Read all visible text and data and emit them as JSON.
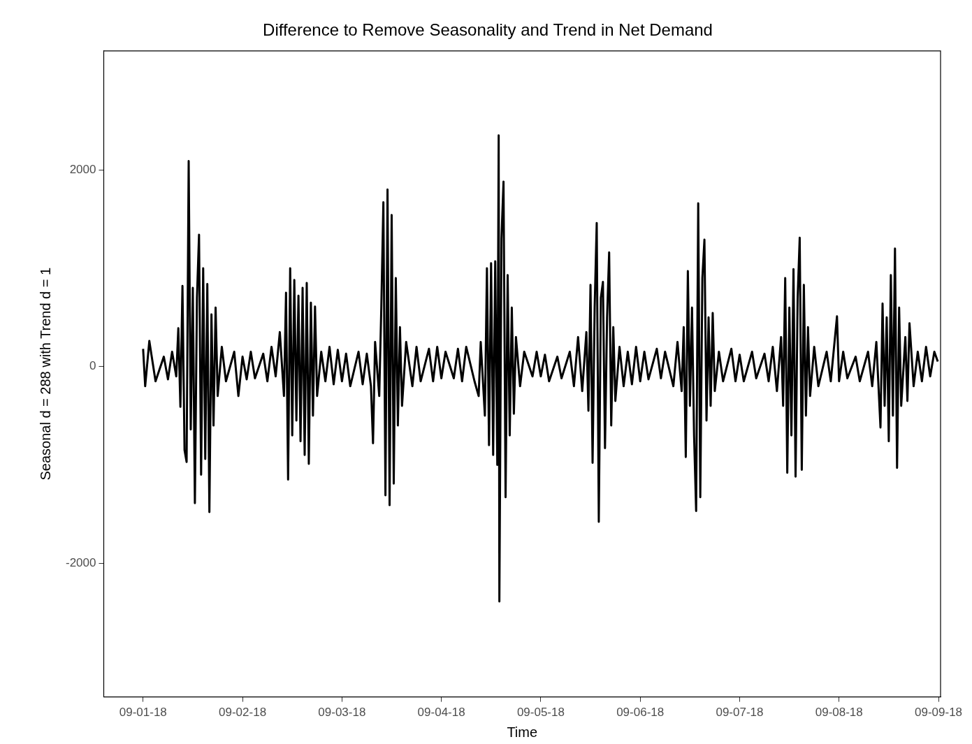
{
  "chart_data": {
    "type": "line",
    "title": "Difference to Remove Seasonality and Trend in Net Demand",
    "xlabel": "Time",
    "ylabel": "Seasonal d = 288 with Trend d = 1",
    "xlim": [
      "--08-31T14:30",
      "--09-09T00:30"
    ],
    "xticks": [
      {
        "value": "--09-01",
        "label": "09-01-18"
      },
      {
        "value": "--09-02",
        "label": "09-02-18"
      },
      {
        "value": "--09-03",
        "label": "09-03-18"
      },
      {
        "value": "--09-04",
        "label": "09-04-18"
      },
      {
        "value": "--09-05",
        "label": "09-05-18"
      },
      {
        "value": "--09-06",
        "label": "09-06-18"
      },
      {
        "value": "--09-07",
        "label": "09-07-18"
      },
      {
        "value": "--09-08",
        "label": "09-08-18"
      },
      {
        "value": "--09-09",
        "label": "09-09-18"
      }
    ],
    "ylim": [
      -3360,
      3210
    ],
    "yticks": [
      -2000,
      0,
      2000
    ],
    "grid": false,
    "legend": false,
    "line_style": "solid",
    "x": [
      "--09-01T00:00",
      "--09-01T00:30",
      "--09-01T01:30",
      "--09-01T03:00",
      "--09-01T05:00",
      "--09-01T06:00",
      "--09-01T07:00",
      "--09-01T08:00",
      "--09-01T08:30",
      "--09-01T09:00",
      "--09-01T09:30",
      "--09-01T10:00",
      "--09-01T10:30",
      "--09-01T11:00",
      "--09-01T11:30",
      "--09-01T12:00",
      "--09-01T12:30",
      "--09-01T13:00",
      "--09-01T13:30",
      "--09-01T14:00",
      "--09-01T14:30",
      "--09-01T15:00",
      "--09-01T15:30",
      "--09-01T16:00",
      "--09-01T16:30",
      "--09-01T17:00",
      "--09-01T17:30",
      "--09-01T18:00",
      "--09-01T19:00",
      "--09-01T20:00",
      "--09-01T22:00",
      "--09-01T23:00",
      "--09-02T00:00",
      "--09-02T01:00",
      "--09-02T02:00",
      "--09-02T03:00",
      "--09-02T05:00",
      "--09-02T06:00",
      "--09-02T07:00",
      "--09-02T08:00",
      "--09-02T09:00",
      "--09-02T10:00",
      "--09-02T10:30",
      "--09-02T11:00",
      "--09-02T11:30",
      "--09-02T12:00",
      "--09-02T12:30",
      "--09-02T13:00",
      "--09-02T13:30",
      "--09-02T14:00",
      "--09-02T14:30",
      "--09-02T15:00",
      "--09-02T15:30",
      "--09-02T16:00",
      "--09-02T16:30",
      "--09-02T17:00",
      "--09-02T17:30",
      "--09-02T18:00",
      "--09-02T19:00",
      "--09-02T20:00",
      "--09-02T21:00",
      "--09-02T22:00",
      "--09-02T23:00",
      "--09-03T00:00",
      "--09-03T01:00",
      "--09-03T02:00",
      "--09-03T04:00",
      "--09-03T05:00",
      "--09-03T06:00",
      "--09-03T07:00",
      "--09-03T07:30",
      "--09-03T08:00",
      "--09-03T09:00",
      "--09-03T09:30",
      "--09-03T10:00",
      "--09-03T10:30",
      "--09-03T11:00",
      "--09-03T11:30",
      "--09-03T12:00",
      "--09-03T12:30",
      "--09-03T13:00",
      "--09-03T13:30",
      "--09-03T14:00",
      "--09-03T14:30",
      "--09-03T15:30",
      "--09-03T17:00",
      "--09-03T18:00",
      "--09-03T19:00",
      "--09-03T21:00",
      "--09-03T22:00",
      "--09-03T23:00",
      "--09-04T00:00",
      "--09-04T01:00",
      "--09-04T03:00",
      "--09-04T04:00",
      "--09-04T05:00",
      "--09-04T06:00",
      "--09-04T08:00",
      "--09-04T09:00",
      "--09-04T09:30",
      "--09-04T10:30",
      "--09-04T11:00",
      "--09-04T11:30",
      "--09-04T12:00",
      "--09-04T12:30",
      "--09-04T13:00",
      "--09-04T13:30",
      "--09-04T13:50",
      "--09-04T14:00",
      "--09-04T14:30",
      "--09-04T15:00",
      "--09-04T15:30",
      "--09-04T16:00",
      "--09-04T16:30",
      "--09-04T17:00",
      "--09-04T17:30",
      "--09-04T18:00",
      "--09-04T19:00",
      "--09-04T20:00",
      "--09-04T22:00",
      "--09-04T23:00",
      "--09-05T00:00",
      "--09-05T01:00",
      "--09-05T02:00",
      "--09-05T04:00",
      "--09-05T05:00",
      "--09-05T07:00",
      "--09-05T08:00",
      "--09-05T09:00",
      "--09-05T10:00",
      "--09-05T11:00",
      "--09-05T11:30",
      "--09-05T12:00",
      "--09-05T12:30",
      "--09-05T13:00",
      "--09-05T13:30",
      "--09-05T14:00",
      "--09-05T14:30",
      "--09-05T15:00",
      "--09-05T15:30",
      "--09-05T16:00",
      "--09-05T16:30",
      "--09-05T17:00",
      "--09-05T17:30",
      "--09-05T18:00",
      "--09-05T19:00",
      "--09-05T20:00",
      "--09-05T21:00",
      "--09-05T22:00",
      "--09-05T23:00",
      "--09-06T00:00",
      "--09-06T01:00",
      "--09-06T02:00",
      "--09-06T04:00",
      "--09-06T05:00",
      "--09-06T06:00",
      "--09-06T08:00",
      "--09-06T09:00",
      "--09-06T10:00",
      "--09-06T10:30",
      "--09-06T11:00",
      "--09-06T11:30",
      "--09-06T12:00",
      "--09-06T12:30",
      "--09-06T13:00",
      "--09-06T13:30",
      "--09-06T14:00",
      "--09-06T14:30",
      "--09-06T15:00",
      "--09-06T15:30",
      "--09-06T16:00",
      "--09-06T16:30",
      "--09-06T17:00",
      "--09-06T17:30",
      "--09-06T18:00",
      "--09-06T19:00",
      "--09-06T20:00",
      "--09-06T22:00",
      "--09-06T23:00",
      "--09-07T00:00",
      "--09-07T01:00",
      "--09-07T03:00",
      "--09-07T04:00",
      "--09-07T06:00",
      "--09-07T07:00",
      "--09-07T08:00",
      "--09-07T09:00",
      "--09-07T10:00",
      "--09-07T10:30",
      "--09-07T11:00",
      "--09-07T11:30",
      "--09-07T12:00",
      "--09-07T12:30",
      "--09-07T13:00",
      "--09-07T13:30",
      "--09-07T14:00",
      "--09-07T14:30",
      "--09-07T15:00",
      "--09-07T15:30",
      "--09-07T16:00",
      "--09-07T16:30",
      "--09-07T17:00",
      "--09-07T18:00",
      "--09-07T19:00",
      "--09-07T21:00",
      "--09-07T22:00",
      "--09-07T23:30",
      "--09-08T00:00",
      "--09-08T01:00",
      "--09-08T02:00",
      "--09-08T04:00",
      "--09-08T05:00",
      "--09-08T07:00",
      "--09-08T08:00",
      "--09-08T09:00",
      "--09-08T10:00",
      "--09-08T10:30",
      "--09-08T11:00",
      "--09-08T11:30",
      "--09-08T12:00",
      "--09-08T12:30",
      "--09-08T13:00",
      "--09-08T13:30",
      "--09-08T14:00",
      "--09-08T14:30",
      "--09-08T15:00",
      "--09-08T16:00",
      "--09-08T16:30",
      "--09-08T17:00",
      "--09-08T18:00",
      "--09-08T19:00",
      "--09-08T20:00",
      "--09-08T21:00",
      "--09-08T22:00",
      "--09-08T23:00",
      "--09-08T23:50"
    ],
    "series": [
      {
        "color": "#000000",
        "values": [
          180,
          -200,
          260,
          -150,
          100,
          -130,
          150,
          -100,
          390,
          -410,
          820,
          -850,
          -970,
          2090,
          -640,
          800,
          -1390,
          700,
          1340,
          -1100,
          1000,
          -940,
          840,
          -1480,
          530,
          -600,
          600,
          -300,
          200,
          -150,
          150,
          -300,
          100,
          -130,
          150,
          -120,
          130,
          -150,
          200,
          -100,
          350,
          -300,
          750,
          -1150,
          1000,
          -700,
          880,
          -550,
          720,
          -760,
          800,
          -900,
          850,
          -990,
          650,
          -500,
          610,
          -300,
          150,
          -150,
          200,
          -180,
          170,
          -150,
          130,
          -200,
          150,
          -180,
          130,
          -200,
          -780,
          250,
          -300,
          600,
          1670,
          -1310,
          1800,
          -1410,
          1540,
          -1190,
          900,
          -600,
          400,
          -400,
          250,
          -200,
          200,
          -150,
          180,
          -150,
          200,
          -120,
          150,
          -120,
          180,
          -150,
          200,
          -150,
          -300,
          250,
          -500,
          1000,
          -800,
          1050,
          -900,
          1070,
          -1000,
          2350,
          -2390,
          1300,
          1880,
          -1330,
          930,
          -700,
          600,
          -480,
          300,
          -200,
          150,
          -100,
          150,
          -100,
          120,
          -150,
          100,
          -120,
          150,
          -200,
          300,
          -250,
          350,
          -450,
          830,
          -980,
          600,
          1460,
          -1580,
          700,
          860,
          -830,
          500,
          1160,
          -600,
          400,
          -350,
          200,
          -200,
          150,
          -180,
          200,
          -150,
          150,
          -130,
          180,
          -120,
          150,
          -200,
          250,
          -250,
          400,
          -920,
          970,
          -400,
          600,
          -700,
          -1470,
          1660,
          -1330,
          900,
          1290,
          -550,
          500,
          -400,
          545,
          -250,
          150,
          -150,
          180,
          -150,
          120,
          -150,
          150,
          -120,
          130,
          -150,
          200,
          -250,
          300,
          -400,
          900,
          -1080,
          600,
          -700,
          990,
          -1120,
          700,
          1310,
          -1050,
          830,
          -500,
          400,
          -300,
          200,
          -200,
          150,
          -150,
          510,
          -150,
          150,
          -120,
          100,
          -150,
          150,
          -200,
          250,
          -620,
          640,
          -400,
          500,
          -760,
          930,
          -500,
          1200,
          -1030,
          600,
          -400,
          300,
          -350,
          440,
          -200,
          150,
          -150,
          200,
          -100,
          150,
          50
        ]
      }
    ]
  }
}
